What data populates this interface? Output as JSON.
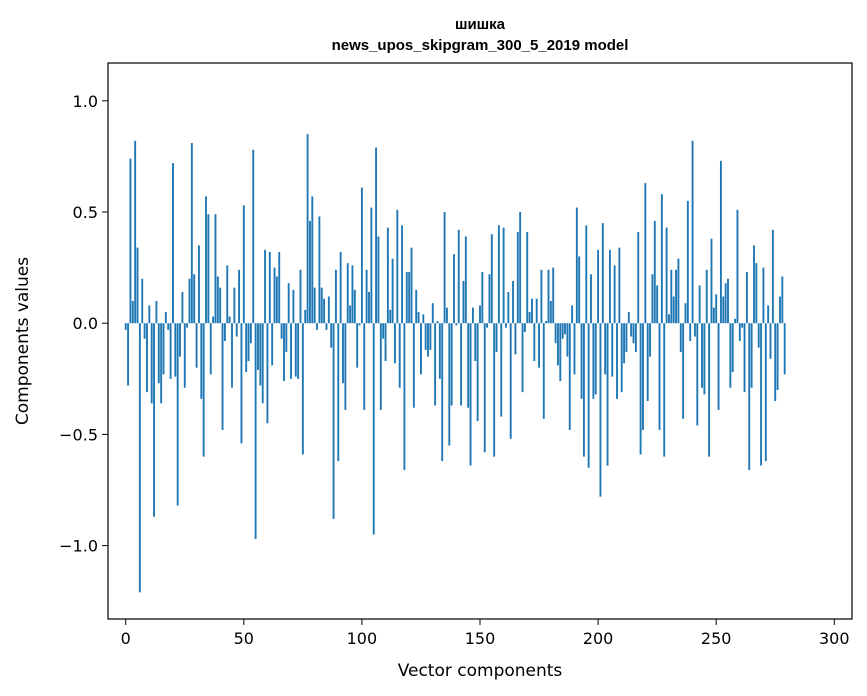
{
  "chart_data": {
    "type": "bar",
    "title": "шишка",
    "subtitle": "news_upos_skipgram_300_5_2019 model",
    "xlabel": "Vector components",
    "ylabel": "Components values",
    "xlim": [
      -7.5,
      307.5
    ],
    "ylim": [
      -1.33,
      1.17
    ],
    "xticks": [
      {
        "value": 0,
        "label": "0"
      },
      {
        "value": 50,
        "label": "50"
      },
      {
        "value": 100,
        "label": "100"
      },
      {
        "value": 150,
        "label": "150"
      },
      {
        "value": 200,
        "label": "200"
      },
      {
        "value": 250,
        "label": "250"
      },
      {
        "value": 300,
        "label": "300"
      }
    ],
    "yticks": [
      {
        "value": -1.0,
        "label": "−1.0"
      },
      {
        "value": -0.5,
        "label": "−0.5"
      },
      {
        "value": 0.0,
        "label": "0.0"
      },
      {
        "value": 0.5,
        "label": "0.5"
      },
      {
        "value": 1.0,
        "label": "1.0"
      }
    ],
    "grid": false,
    "bar_color": "#1f77b4",
    "values": [
      -0.03,
      -0.28,
      0.74,
      0.1,
      0.82,
      0.34,
      -1.21,
      0.2,
      -0.07,
      -0.31,
      0.08,
      -0.36,
      -0.87,
      0.1,
      -0.27,
      -0.36,
      -0.23,
      0.05,
      -0.03,
      -0.25,
      0.72,
      -0.24,
      -0.82,
      -0.15,
      0.14,
      -0.29,
      -0.02,
      0.2,
      0.81,
      0.22,
      -0.2,
      0.35,
      -0.34,
      -0.6,
      0.57,
      0.49,
      -0.23,
      0.03,
      0.49,
      0.21,
      0.16,
      -0.48,
      -0.08,
      0.26,
      0.03,
      -0.29,
      0.16,
      -0.06,
      0.24,
      -0.54,
      0.53,
      -0.22,
      -0.17,
      -0.09,
      0.78,
      -0.97,
      -0.21,
      -0.28,
      -0.36,
      0.33,
      -0.45,
      0.32,
      -0.19,
      0.25,
      0.21,
      0.32,
      -0.07,
      -0.26,
      -0.13,
      0.18,
      -0.25,
      0.15,
      -0.24,
      -0.25,
      0.24,
      -0.59,
      0.06,
      0.85,
      0.46,
      0.57,
      0.16,
      -0.03,
      0.48,
      0.16,
      0.11,
      -0.03,
      0.12,
      -0.11,
      -0.88,
      0.24,
      -0.62,
      0.32,
      -0.27,
      -0.39,
      0.27,
      0.08,
      0.26,
      0.15,
      -0.2,
      -0.01,
      0.61,
      -0.39,
      0.24,
      0.14,
      0.52,
      -0.95,
      0.79,
      0.39,
      -0.39,
      -0.07,
      -0.17,
      0.43,
      0.06,
      0.29,
      -0.18,
      0.51,
      -0.29,
      0.44,
      -0.66,
      0.23,
      0.23,
      0.34,
      -0.38,
      0.15,
      0.05,
      -0.23,
      0.04,
      -0.12,
      -0.15,
      -0.12,
      0.09,
      -0.37,
      0.01,
      -0.25,
      -0.62,
      0.5,
      0.07,
      -0.55,
      -0.37,
      0.31,
      -0.01,
      0.42,
      -0.37,
      0.19,
      0.39,
      -0.38,
      -0.64,
      0.07,
      -0.17,
      -0.44,
      0.08,
      0.23,
      -0.58,
      -0.02,
      0.22,
      0.4,
      -0.6,
      -0.13,
      0.44,
      -0.42,
      0.43,
      -0.02,
      0.14,
      -0.52,
      0.19,
      -0.14,
      0.41,
      0.5,
      -0.31,
      -0.04,
      0.41,
      0.05,
      0.11,
      -0.17,
      0.11,
      -0.2,
      0.24,
      -0.43,
      0.01,
      0.24,
      0.1,
      0.25,
      -0.09,
      -0.19,
      -0.26,
      -0.07,
      -0.05,
      -0.15,
      -0.48,
      0.08,
      -0.23,
      0.52,
      0.3,
      -0.34,
      -0.6,
      0.44,
      -0.65,
      0.22,
      -0.34,
      -0.32,
      0.33,
      -0.78,
      0.45,
      -0.23,
      -0.64,
      0.33,
      -0.24,
      0.26,
      -0.34,
      0.34,
      -0.31,
      -0.18,
      -0.13,
      0.05,
      -0.06,
      -0.09,
      -0.13,
      0.41,
      -0.59,
      -0.48,
      0.63,
      -0.35,
      -0.15,
      0.22,
      0.46,
      0.17,
      -0.48,
      0.58,
      -0.6,
      0.43,
      0.04,
      0.24,
      0.12,
      0.24,
      0.29,
      -0.13,
      -0.43,
      0.09,
      0.55,
      -0.08,
      0.82,
      -0.06,
      -0.46,
      0.17,
      -0.29,
      -0.32,
      0.24,
      -0.6,
      0.38,
      0.07,
      0.13,
      -0.39,
      0.73,
      0.12,
      0.18,
      0.2,
      -0.29,
      -0.22,
      0.02,
      0.51,
      -0.08,
      -0.02,
      -0.31,
      0.23,
      -0.66,
      -0.29,
      0.35,
      0.27,
      -0.11,
      -0.64,
      0.25,
      -0.62,
      0.08,
      -0.16,
      0.42,
      -0.35,
      -0.3,
      0.12,
      0.21,
      -0.23
    ]
  }
}
